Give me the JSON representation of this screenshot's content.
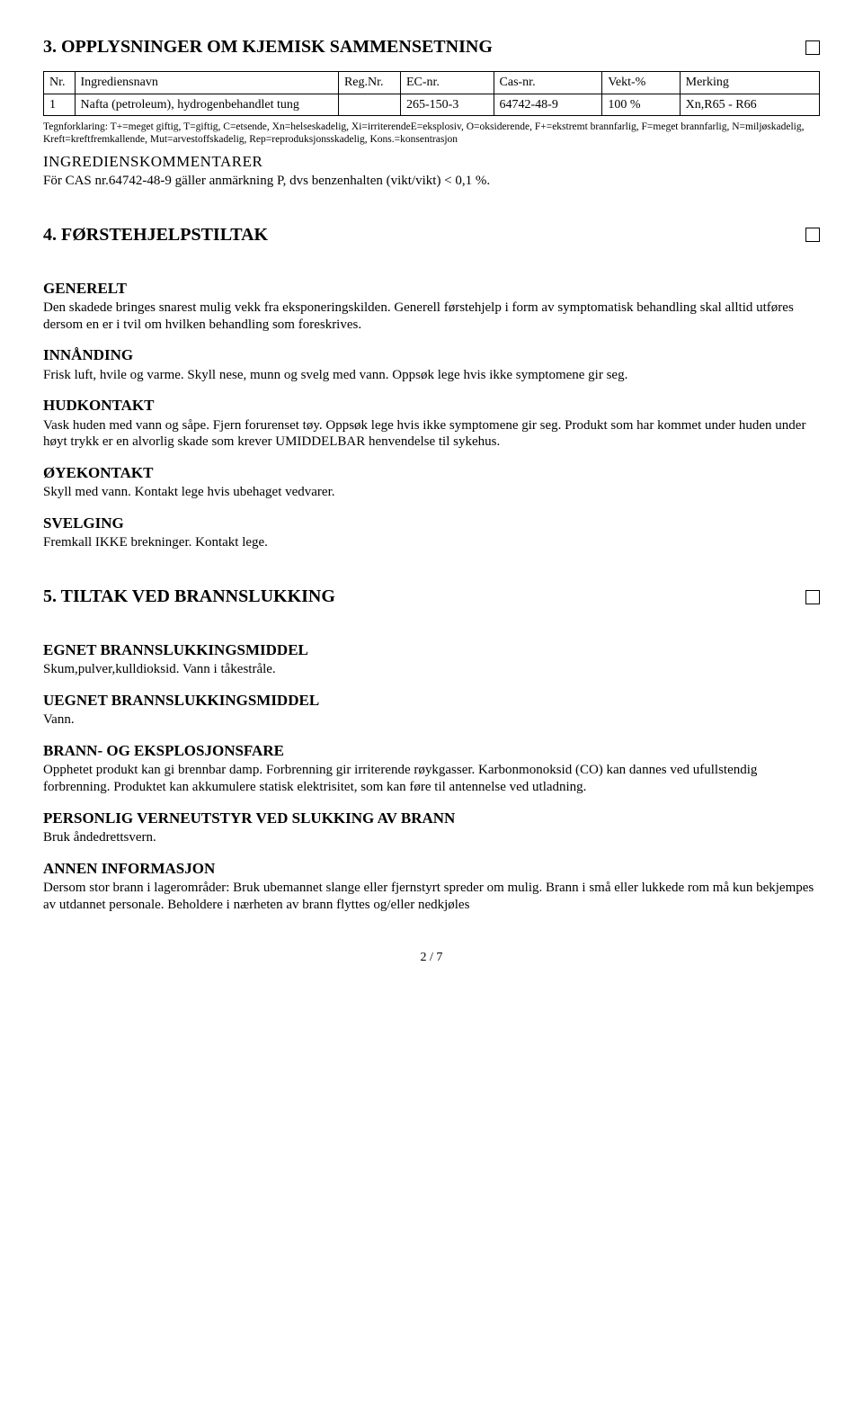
{
  "section3": {
    "heading": "3. OPPLYSNINGER OM KJEMISK SAMMENSETNING",
    "table": {
      "headers": [
        "Nr.",
        "Ingrediensnavn",
        "Reg.Nr.",
        "EC-nr.",
        "Cas-nr.",
        "Vekt-%",
        "Merking"
      ],
      "rows": [
        [
          "1",
          "Nafta (petroleum), hydrogenbehandlet tung",
          "",
          "265-150-3",
          "64742-48-9",
          "100 %",
          "Xn,R65 - R66"
        ]
      ],
      "colwidths": [
        "4%",
        "34%",
        "8%",
        "12%",
        "14%",
        "10%",
        "18%"
      ]
    },
    "tegnforklaring": "Tegnforklaring: T+=meget giftig, T=giftig, C=etsende, Xn=helseskadelig, Xi=irriterendeE=eksplosiv, O=oksiderende, F+=ekstremt brannfarlig, F=meget brannfarlig, N=miljøskadelig, Kreft=kreftfremkallende, Mut=arvestoffskadelig, Rep=reproduksjonsskadelig, Kons.=konsentrasjon",
    "ingredienskommentarer_heading": "INGREDIENSKOMMENTARER",
    "ingredienskommentarer_body": "För CAS nr.64742-48-9 gäller anmärkning P, dvs benzenhalten (vikt/vikt) < 0,1 %."
  },
  "section4": {
    "heading": "4. FØRSTEHJELPSTILTAK",
    "generelt": {
      "heading": "GENERELT",
      "body": "Den skadede bringes snarest mulig vekk fra eksponeringskilden. Generell førstehjelp i form av symptomatisk behandling skal alltid utføres dersom en er i tvil om hvilken behandling som foreskrives."
    },
    "innanding": {
      "heading": "INNÅNDING",
      "body": "Frisk luft, hvile og varme. Skyll nese, munn og svelg med vann. Oppsøk lege hvis ikke symptomene gir seg."
    },
    "hudkontakt": {
      "heading": "HUDKONTAKT",
      "body": "Vask huden med vann og såpe. Fjern forurenset tøy. Oppsøk lege hvis ikke symptomene gir seg. Produkt som har kommet under huden under høyt trykk er en alvorlig skade som krever UMIDDELBAR henvendelse til sykehus."
    },
    "oyekontakt": {
      "heading": "ØYEKONTAKT",
      "body": "Skyll med vann. Kontakt lege hvis ubehaget vedvarer."
    },
    "svelging": {
      "heading": "SVELGING",
      "body": "Fremkall IKKE brekninger. Kontakt lege."
    }
  },
  "section5": {
    "heading": "5. TILTAK VED BRANNSLUKKING",
    "egnet": {
      "heading": "EGNET BRANNSLUKKINGSMIDDEL",
      "body": "Skum,pulver,kulldioksid. Vann i tåkestråle."
    },
    "uegnet": {
      "heading": "UEGNET BRANNSLUKKINGSMIDDEL",
      "body": "Vann."
    },
    "brannfare": {
      "heading": "BRANN- OG EKSPLOSJONSFARE",
      "body": "Opphetet produkt kan gi brennbar damp. Forbrenning gir irriterende røykgasser. Karbonmonoksid (CO) kan dannes ved ufullstendig forbrenning. Produktet kan akkumulere statisk elektrisitet, som kan føre til antennelse ved utladning."
    },
    "personlig": {
      "heading": "PERSONLIG VERNEUTSTYR VED SLUKKING AV BRANN",
      "body": "Bruk åndedrettsvern."
    },
    "annen": {
      "heading": "ANNEN INFORMASJON",
      "body": "Dersom stor brann i lagerområder: Bruk ubemannet slange eller fjernstyrt spreder om mulig. Brann i små eller lukkede rom må kun bekjempes av utdannet personale. Beholdere i nærheten av brann flyttes og/eller nedkjøles"
    }
  },
  "footer": "2 / 7"
}
